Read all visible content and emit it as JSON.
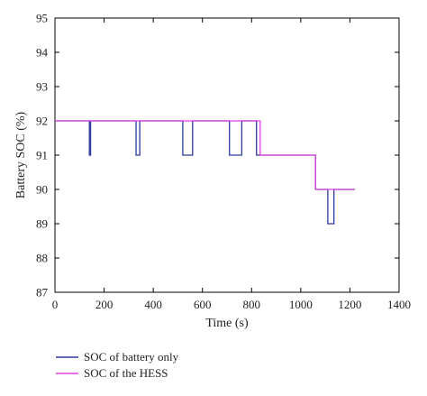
{
  "chart_data": {
    "type": "line",
    "title": "",
    "xlabel": "Time (s)",
    "ylabel": "Battery SOC (%)",
    "xlim": [
      0,
      1400
    ],
    "ylim": [
      87,
      95
    ],
    "xticks": [
      0,
      200,
      400,
      600,
      800,
      1000,
      1200,
      1400
    ],
    "yticks": [
      87,
      88,
      89,
      90,
      91,
      92,
      93,
      94,
      95
    ],
    "xtick_labels": [
      "0",
      "200",
      "400",
      "600",
      "800",
      "1000",
      "1200",
      "1400"
    ],
    "ytick_labels": [
      "87",
      "88",
      "89",
      "90",
      "91",
      "92",
      "93",
      "94",
      "95"
    ],
    "grid": false,
    "legend_position": "below",
    "series": [
      {
        "name": "SOC of battery only",
        "color": "#2b3b9e",
        "x": [
          0,
          140,
          140,
          145,
          145,
          330,
          330,
          345,
          345,
          520,
          520,
          560,
          560,
          710,
          710,
          760,
          760,
          820,
          820,
          1060,
          1060,
          1110,
          1110,
          1135,
          1135,
          1220
        ],
        "y": [
          92,
          92,
          91,
          91,
          92,
          92,
          91,
          91,
          92,
          92,
          91,
          91,
          92,
          92,
          91,
          91,
          92,
          92,
          91,
          91,
          90,
          90,
          89,
          89,
          90,
          90
        ]
      },
      {
        "name": "SOC of the HESS",
        "color": "#e040e0",
        "x": [
          0,
          835,
          835,
          1060,
          1060,
          1220
        ],
        "y": [
          92,
          92,
          91,
          91,
          90,
          90
        ]
      }
    ]
  }
}
